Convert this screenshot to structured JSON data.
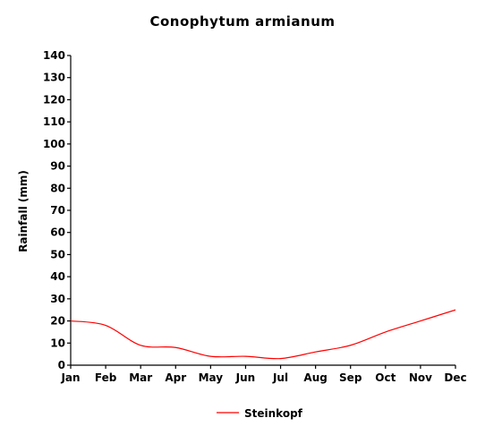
{
  "chart_data": {
    "type": "line",
    "title": "Conophytum armianum",
    "xlabel": "",
    "ylabel": "Rainfall (mm)",
    "categories": [
      "Jan",
      "Feb",
      "Mar",
      "Apr",
      "May",
      "Jun",
      "Jul",
      "Aug",
      "Sep",
      "Oct",
      "Nov",
      "Dec"
    ],
    "ylim": [
      0,
      140
    ],
    "yticks": [
      0,
      10,
      20,
      30,
      40,
      50,
      60,
      70,
      80,
      90,
      100,
      110,
      120,
      130,
      140
    ],
    "grid": false,
    "legend_position": "bottom-center",
    "series": [
      {
        "name": "Steinkopf",
        "color": "#ff0000",
        "values": [
          20,
          18,
          9,
          8,
          4,
          4,
          3,
          6,
          9,
          15,
          20,
          25
        ]
      }
    ]
  }
}
